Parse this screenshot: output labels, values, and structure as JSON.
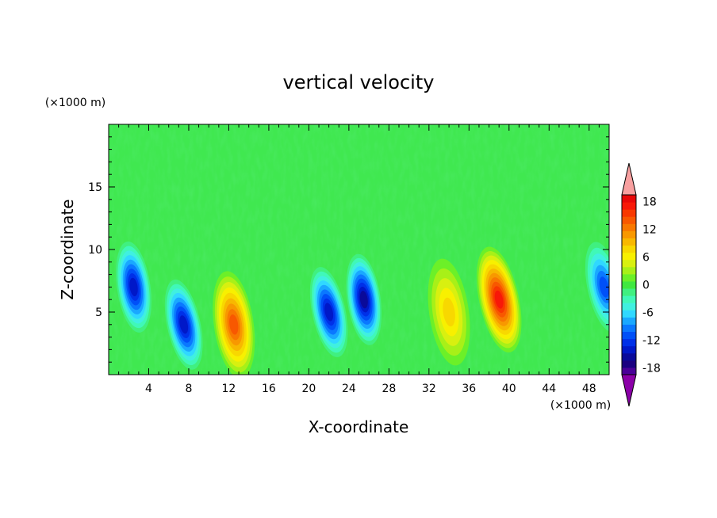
{
  "chart_data": {
    "type": "heatmap",
    "title": "vertical velocity",
    "xlabel": "X-coordinate",
    "ylabel": "Z-coordinate",
    "x_unit": "(×1000 m)",
    "y_unit": "(×1000 m)",
    "xlim": [
      0,
      50
    ],
    "ylim": [
      0,
      20
    ],
    "x_ticks": [
      "4",
      "8",
      "12",
      "16",
      "20",
      "24",
      "28",
      "32",
      "36",
      "40",
      "44",
      "48"
    ],
    "y_ticks": [
      "5",
      "10",
      "15"
    ],
    "colorbar": {
      "min": -21,
      "max": 21,
      "levels": [
        -21,
        -19.5,
        -18,
        -16.5,
        -15,
        -13.5,
        -12,
        -10.5,
        -9,
        -7.5,
        -6,
        -4.5,
        -3,
        -1.5,
        0,
        1.5,
        3,
        4.5,
        6,
        7.5,
        9,
        10.5,
        12,
        13.5,
        15,
        16.5,
        18,
        19.5,
        21
      ],
      "colors": [
        "#8b00a8",
        "#4a0098",
        "#1a0080",
        "#0a0a9a",
        "#0018c8",
        "#0030e8",
        "#0050f8",
        "#0a78ff",
        "#1aa8ff",
        "#30d8ff",
        "#40f0e0",
        "#40f8b8",
        "#40f080",
        "#40e840",
        "#6cf028",
        "#a8f018",
        "#d8f010",
        "#f8f000",
        "#f8d800",
        "#f8b800",
        "#f89800",
        "#f87800",
        "#f85800",
        "#f83800",
        "#f81808",
        "#e80808",
        "#f8a0a0"
      ],
      "tick_labels": [
        "18",
        "12",
        "6",
        "0",
        "-6",
        "-12",
        "-18"
      ],
      "tick_values": [
        18,
        12,
        6,
        0,
        -6,
        -12,
        -18
      ]
    },
    "features": [
      {
        "x": 2.5,
        "z": 7,
        "value": -14
      },
      {
        "x": 7.5,
        "z": 4,
        "value": -13
      },
      {
        "x": 12.5,
        "z": 4,
        "value": 14
      },
      {
        "x": 22,
        "z": 5,
        "value": -14
      },
      {
        "x": 25.5,
        "z": 6,
        "value": -15
      },
      {
        "x": 39,
        "z": 6,
        "value": 16
      },
      {
        "x": 34,
        "z": 5,
        "value": 7
      },
      {
        "x": 49.5,
        "z": 7,
        "value": -10
      }
    ]
  }
}
